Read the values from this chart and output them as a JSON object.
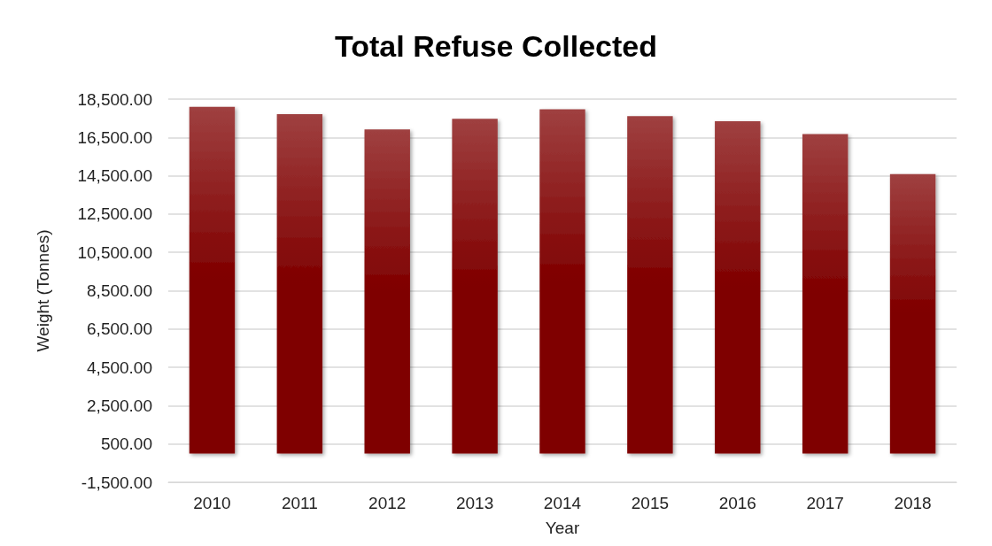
{
  "chart_data": {
    "type": "bar",
    "title": "Total Refuse Collected",
    "xlabel": "Year",
    "ylabel": "Weight (Tonnes)",
    "categories": [
      "2010",
      "2011",
      "2012",
      "2013",
      "2014",
      "2015",
      "2016",
      "2017",
      "2018"
    ],
    "values": [
      18100,
      17710,
      16920,
      17470,
      17970,
      17610,
      17340,
      16680,
      14580
    ],
    "color": "#7f0000",
    "ylim": [
      -1500,
      18500
    ],
    "yticks": [
      {
        "value": -1500,
        "label": "-1,500.00"
      },
      {
        "value": 500,
        "label": "500.00"
      },
      {
        "value": 2500,
        "label": "2,500.00"
      },
      {
        "value": 4500,
        "label": "4,500.00"
      },
      {
        "value": 6500,
        "label": "6,500.00"
      },
      {
        "value": 8500,
        "label": "8,500.00"
      },
      {
        "value": 10500,
        "label": "10,500.00"
      },
      {
        "value": 12500,
        "label": "12,500.00"
      },
      {
        "value": 14500,
        "label": "14,500.00"
      },
      {
        "value": 16500,
        "label": "16,500.00"
      },
      {
        "value": 18500,
        "label": "18,500.00"
      }
    ],
    "grid": "y"
  }
}
